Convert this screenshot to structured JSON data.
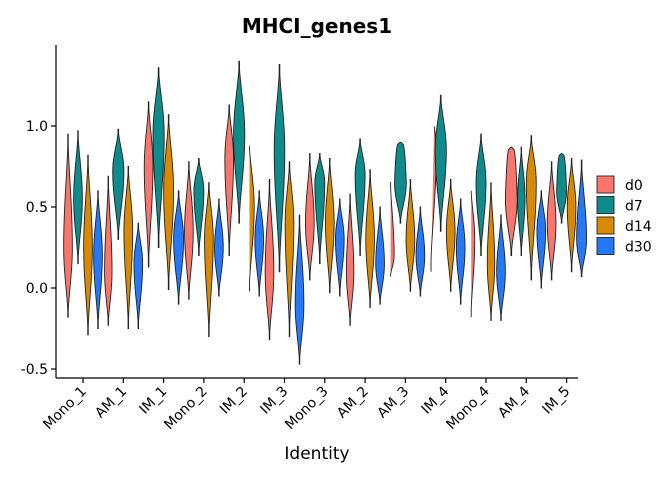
{
  "chart_data": {
    "type": "violin",
    "title": "MHCI_genes1",
    "xlabel": "Identity",
    "ylabel": "",
    "ylim": [
      -0.55,
      1.48
    ],
    "yticks": [
      -0.5,
      0.0,
      0.5,
      1.0
    ],
    "ytick_labels": [
      "-0.5",
      "0.0",
      "0.5",
      "1.0"
    ],
    "grid": false,
    "legend_position": "right",
    "categories": [
      "Mono_1",
      "AM_1",
      "IM_1",
      "Mono_2",
      "IM_2",
      "IM_3",
      "Mono_3",
      "AM_2",
      "AM_3",
      "IM_4",
      "Mono_4",
      "AM_4",
      "IM_5"
    ],
    "series": [
      {
        "name": "d0",
        "color": "#F8766D",
        "violins": [
          {
            "min": -0.18,
            "max": 0.95,
            "mode": 0.25,
            "width": 0.7
          },
          {
            "min": -0.23,
            "max": 0.69,
            "mode": 0.1,
            "width": 0.6
          },
          {
            "min": 0.13,
            "max": 1.15,
            "mode": 0.75,
            "width": 0.7
          },
          {
            "min": -0.07,
            "max": 0.78,
            "mode": 0.35,
            "width": 0.7
          },
          {
            "min": 0.2,
            "max": 1.13,
            "mode": 0.8,
            "width": 0.7
          },
          {
            "min": -0.32,
            "max": 0.67,
            "mode": 0.1,
            "width": 0.7
          },
          {
            "min": 0.05,
            "max": 0.83,
            "mode": 0.4,
            "width": 0.7
          },
          {
            "min": -0.23,
            "max": 0.58,
            "mode": 0.1,
            "width": 0.6
          },
          {
            "min": 0.07,
            "max": 0.67,
            "mode": 0.2,
            "width": 0.6
          },
          {
            "min": 0.1,
            "max": 1.02,
            "mode": 0.85,
            "width": 0.9,
            "flat_top": true
          },
          {
            "min": -0.18,
            "max": 0.62,
            "mode": 0.3,
            "width": 0.6
          },
          {
            "min": 0.2,
            "max": 0.87,
            "mode": 0.55,
            "width": 0.95,
            "flat_top": true
          },
          {
            "min": 0.05,
            "max": 0.78,
            "mode": 0.4,
            "width": 0.7
          }
        ]
      },
      {
        "name": "d7",
        "color": "#0E8B8A",
        "violins": [
          {
            "min": 0.15,
            "max": 0.97,
            "mode": 0.55,
            "width": 0.7
          },
          {
            "min": 0.3,
            "max": 0.98,
            "mode": 0.72,
            "width": 0.9
          },
          {
            "min": 0.25,
            "max": 1.36,
            "mode": 0.95,
            "width": 0.9
          },
          {
            "min": 0.2,
            "max": 0.8,
            "mode": 0.6,
            "width": 0.8
          },
          {
            "min": 0.4,
            "max": 1.4,
            "mode": 0.95,
            "width": 0.9
          },
          {
            "min": 0.1,
            "max": 1.38,
            "mode": 0.85,
            "width": 0.85
          },
          {
            "min": 0.15,
            "max": 0.83,
            "mode": 0.65,
            "width": 0.8
          },
          {
            "min": 0.2,
            "max": 0.92,
            "mode": 0.7,
            "width": 0.8
          },
          {
            "min": 0.4,
            "max": 0.9,
            "mode": 0.65,
            "width": 0.95,
            "flat_top": true
          },
          {
            "min": 0.35,
            "max": 1.19,
            "mode": 0.85,
            "width": 0.9
          },
          {
            "min": 0.2,
            "max": 0.95,
            "mode": 0.65,
            "width": 0.8
          },
          {
            "min": 0.2,
            "max": 0.87,
            "mode": 0.55,
            "width": 0.6
          },
          {
            "min": 0.4,
            "max": 0.83,
            "mode": 0.6,
            "width": 0.8,
            "flat_top": true
          }
        ]
      },
      {
        "name": "d14",
        "color": "#D98A05",
        "violins": [
          {
            "min": -0.29,
            "max": 0.82,
            "mode": 0.25,
            "width": 0.7
          },
          {
            "min": -0.25,
            "max": 0.75,
            "mode": 0.35,
            "width": 0.7
          },
          {
            "min": -0.01,
            "max": 1.07,
            "mode": 0.6,
            "width": 0.8
          },
          {
            "min": -0.3,
            "max": 0.65,
            "mode": 0.3,
            "width": 0.7
          },
          {
            "min": -0.02,
            "max": 0.9,
            "mode": 0.5,
            "width": 0.8
          },
          {
            "min": -0.3,
            "max": 0.78,
            "mode": 0.4,
            "width": 0.7
          },
          {
            "min": -0.03,
            "max": 0.8,
            "mode": 0.4,
            "width": 0.7
          },
          {
            "min": -0.12,
            "max": 0.73,
            "mode": 0.3,
            "width": 0.7
          },
          {
            "min": -0.02,
            "max": 0.67,
            "mode": 0.3,
            "width": 0.7
          },
          {
            "min": -0.02,
            "max": 0.67,
            "mode": 0.35,
            "width": 0.7
          },
          {
            "min": -0.2,
            "max": 0.65,
            "mode": 0.15,
            "width": 0.6
          },
          {
            "min": 0.05,
            "max": 0.94,
            "mode": 0.65,
            "width": 0.8
          },
          {
            "min": 0.1,
            "max": 0.8,
            "mode": 0.5,
            "width": 0.7
          }
        ]
      },
      {
        "name": "d30",
        "color": "#2579F7",
        "violins": [
          {
            "min": -0.25,
            "max": 0.6,
            "mode": 0.2,
            "width": 0.7
          },
          {
            "min": -0.25,
            "max": 0.4,
            "mode": 0.15,
            "width": 0.7
          },
          {
            "min": -0.1,
            "max": 0.6,
            "mode": 0.3,
            "width": 0.8
          },
          {
            "min": -0.05,
            "max": 0.55,
            "mode": 0.25,
            "width": 0.7
          },
          {
            "min": -0.05,
            "max": 0.6,
            "mode": 0.3,
            "width": 0.7
          },
          {
            "min": -0.47,
            "max": 0.45,
            "mode": -0.1,
            "width": 0.7
          },
          {
            "min": -0.05,
            "max": 0.55,
            "mode": 0.3,
            "width": 0.7
          },
          {
            "min": -0.1,
            "max": 0.5,
            "mode": 0.15,
            "width": 0.7
          },
          {
            "min": -0.05,
            "max": 0.5,
            "mode": 0.2,
            "width": 0.7
          },
          {
            "min": -0.1,
            "max": 0.55,
            "mode": 0.25,
            "width": 0.7
          },
          {
            "min": -0.2,
            "max": 0.45,
            "mode": 0.1,
            "width": 0.7
          },
          {
            "min": 0.0,
            "max": 0.6,
            "mode": 0.35,
            "width": 0.7
          },
          {
            "min": 0.07,
            "max": 0.79,
            "mode": 0.3,
            "width": 0.8
          }
        ]
      }
    ]
  }
}
